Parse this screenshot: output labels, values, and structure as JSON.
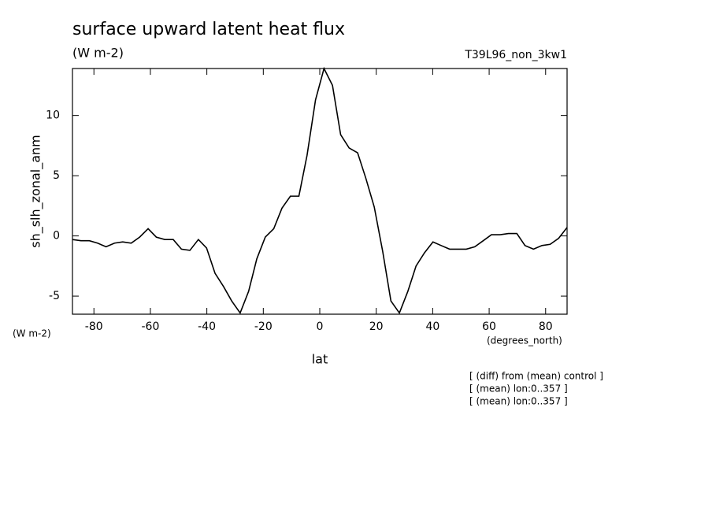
{
  "chart_data": {
    "type": "line",
    "title": "surface upward latent heat flux",
    "units": "(W m-2)",
    "dataset": "T39L96_non_3kw1",
    "y_label": "sh_slh_zonal_anm",
    "y_units": "(W m-2)",
    "x_label": "lat",
    "x_units": "(degrees_north)",
    "notes": [
      "[ (diff) from (mean) control ]",
      "[ (mean) lon:0..357 ]",
      "[ (mean) lon:0..357 ]"
    ],
    "x": [
      -87.6,
      -84.6,
      -81.6,
      -78.7,
      -75.7,
      -72.7,
      -69.8,
      -66.8,
      -63.8,
      -60.8,
      -57.9,
      -54.9,
      -51.9,
      -49.0,
      -46.0,
      -43.0,
      -40.1,
      -37.1,
      -34.1,
      -31.2,
      -28.2,
      -25.2,
      -22.3,
      -19.3,
      -16.3,
      -13.4,
      -10.4,
      -7.4,
      -4.5,
      -1.5,
      1.5,
      4.5,
      7.4,
      10.4,
      13.4,
      16.3,
      19.3,
      22.3,
      25.2,
      28.2,
      31.2,
      34.1,
      37.1,
      40.1,
      43.0,
      46.0,
      49.0,
      51.9,
      54.9,
      57.9,
      60.8,
      63.8,
      66.8,
      69.8,
      72.7,
      75.7,
      78.7,
      81.6,
      84.6,
      87.6
    ],
    "series": [
      {
        "name": "sh_slh_zonal_anm",
        "color": "#000000",
        "values": [
          -0.3,
          -0.4,
          -0.4,
          -0.6,
          -0.9,
          -0.6,
          -0.5,
          -0.6,
          -0.1,
          0.6,
          -0.1,
          -0.3,
          -0.3,
          -1.1,
          -1.2,
          -0.3,
          -1.0,
          -3.1,
          -4.2,
          -5.4,
          -6.4,
          -4.6,
          -1.9,
          -0.1,
          0.6,
          2.3,
          3.3,
          3.3,
          6.7,
          11.3,
          13.9,
          12.5,
          8.4,
          7.3,
          6.9,
          4.8,
          2.4,
          -1.3,
          -5.4,
          -6.4,
          -4.6,
          -2.5,
          -1.4,
          -0.5,
          -0.8,
          -1.1,
          -1.1,
          -1.1,
          -0.9,
          -0.4,
          0.1,
          0.1,
          0.2,
          0.2,
          -0.8,
          -1.1,
          -0.8,
          -0.7,
          -0.2,
          0.7
        ]
      }
    ],
    "xlim": [
      -87.6,
      87.6
    ],
    "xticks": [
      -80,
      -60,
      -40,
      -20,
      0,
      20,
      40,
      60,
      80
    ],
    "ylim": [
      -6.5,
      13.9
    ],
    "yticks": [
      -5,
      0,
      5,
      10
    ]
  }
}
